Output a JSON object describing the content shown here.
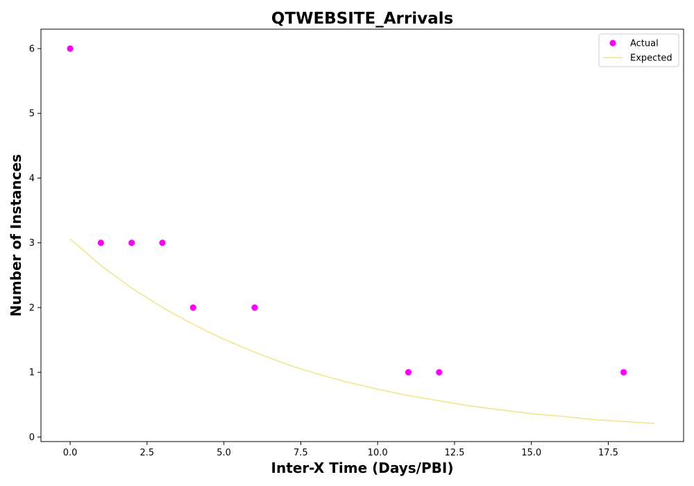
{
  "chart_data": {
    "type": "scatter",
    "title": "QTWEBSITE_Arrivals",
    "xlabel": "Inter-X Time (Days/PBI)",
    "ylabel": "Number of Instances",
    "xlim": [
      -0.95,
      19.95
    ],
    "ylim": [
      -0.07,
      6.3
    ],
    "x_ticks": [
      0.0,
      2.5,
      5.0,
      7.5,
      10.0,
      12.5,
      15.0,
      17.5
    ],
    "x_tick_labels": [
      "0.0",
      "2.5",
      "5.0",
      "7.5",
      "10.0",
      "12.5",
      "15.0",
      "17.5"
    ],
    "y_ticks": [
      0,
      1,
      2,
      3,
      4,
      5,
      6
    ],
    "y_tick_labels": [
      "0",
      "1",
      "2",
      "3",
      "4",
      "5",
      "6"
    ],
    "grid": false,
    "legend_position": "top-right",
    "series": [
      {
        "name": "Actual",
        "kind": "scatter",
        "color": "#ff00ff",
        "x": [
          0,
          1,
          2,
          3,
          4,
          6,
          11,
          12,
          18
        ],
        "y": [
          6,
          3,
          3,
          3,
          2,
          2,
          1,
          1,
          1
        ]
      },
      {
        "name": "Expected",
        "kind": "line",
        "color": "#f0e68c",
        "x": [
          0,
          1,
          2,
          3,
          4,
          5,
          6,
          7,
          8,
          9,
          10,
          11,
          12,
          13,
          14,
          15,
          16,
          17,
          18,
          19
        ],
        "y": [
          3.06,
          2.65,
          2.3,
          2.0,
          1.74,
          1.51,
          1.31,
          1.13,
          0.98,
          0.85,
          0.74,
          0.64,
          0.56,
          0.48,
          0.42,
          0.36,
          0.32,
          0.27,
          0.24,
          0.21
        ]
      }
    ]
  }
}
